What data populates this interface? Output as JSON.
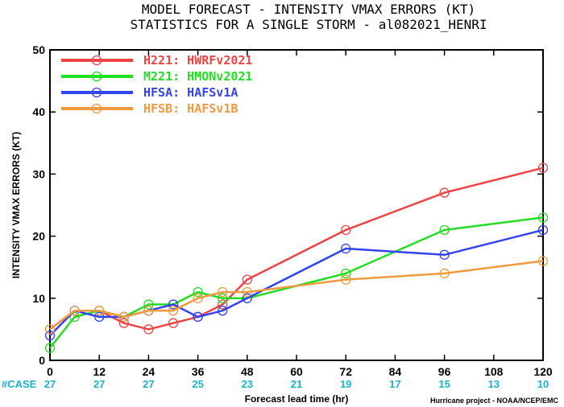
{
  "chart_data": {
    "type": "line",
    "title": "MODEL FORECAST - INTENSITY VMAX ERRORS (KT)",
    "subtitle": "STATISTICS FOR A SINGLE STORM - al082021_HENRI",
    "xlabel": "Forecast lead time (hr)",
    "ylabel": "INTENSITY VMAX ERRORS (KT)",
    "xlim": [
      0,
      120
    ],
    "ylim": [
      0,
      50
    ],
    "x_ticks": [
      0,
      12,
      24,
      36,
      48,
      60,
      72,
      84,
      96,
      108,
      120
    ],
    "y_ticks": [
      0,
      10,
      20,
      30,
      40,
      50
    ],
    "grid": false,
    "legend_position": "top-left",
    "series": [
      {
        "name": "H221: HWRFv2021",
        "color": "#ee4444",
        "x": [
          0,
          6,
          12,
          18,
          24,
          30,
          36,
          42,
          48,
          72,
          96,
          120
        ],
        "values": [
          5,
          8,
          8,
          6,
          5,
          6,
          7,
          9,
          13,
          21,
          27,
          31
        ]
      },
      {
        "name": "M221: HMONv2021",
        "color": "#22dd22",
        "x": [
          0,
          6,
          12,
          18,
          24,
          30,
          36,
          42,
          48,
          72,
          96,
          120
        ],
        "values": [
          2,
          7,
          8,
          7,
          9,
          9,
          11,
          10,
          10,
          14,
          21,
          23
        ]
      },
      {
        "name": "HFSA: HAFSv1A",
        "color": "#3344ee",
        "x": [
          0,
          6,
          12,
          18,
          24,
          30,
          36,
          42,
          48,
          72,
          96,
          120
        ],
        "values": [
          4,
          8,
          7,
          7,
          8,
          9,
          7,
          8,
          10,
          18,
          17,
          21
        ]
      },
      {
        "name": "HFSB: HAFSv1B",
        "color": "#f09a40",
        "x": [
          0,
          6,
          12,
          18,
          24,
          30,
          36,
          42,
          48,
          72,
          96,
          120
        ],
        "values": [
          5,
          8,
          8,
          7,
          8,
          8,
          10,
          11,
          11,
          13,
          14,
          16
        ]
      }
    ],
    "case_label": "#CASE",
    "case_counts": {
      "x": [
        0,
        12,
        24,
        36,
        48,
        60,
        72,
        84,
        96,
        108,
        120
      ],
      "values": [
        27,
        27,
        27,
        25,
        23,
        21,
        19,
        17,
        15,
        13,
        10
      ]
    },
    "credit": "Hurricane project - NOAA/NCEP/EMC"
  }
}
